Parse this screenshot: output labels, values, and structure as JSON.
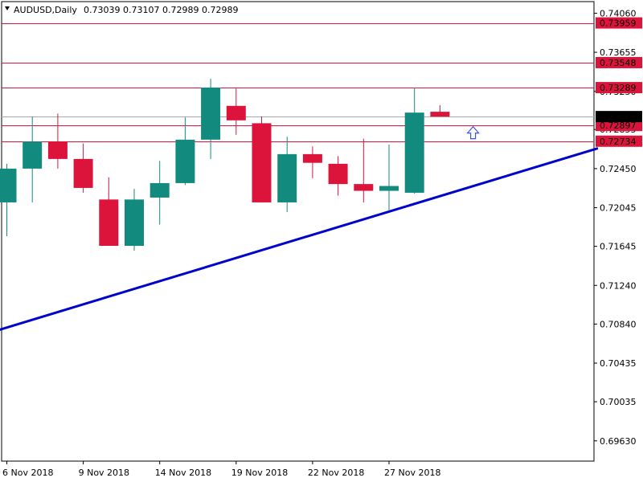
{
  "header": {
    "symbol_timeframe": "AUDUSD,Daily",
    "ohlc": "0.73039 0.73107 0.72989 0.72989"
  },
  "colors": {
    "bull": "#138a7e",
    "bear": "#dc143c",
    "level_line": "#dc143c",
    "current_price_line": "#a9a9a9",
    "trendline": "#0000cd",
    "arrow": "#3355ff"
  },
  "chart_data": {
    "type": "candlestick",
    "symbol": "AUDUSD",
    "timeframe": "Daily",
    "ylim": [
      0.6942,
      0.7418
    ],
    "y_ticks": [
      "0.74060",
      "0.73655",
      "0.73250",
      "0.72855",
      "0.72450",
      "0.72045",
      "0.71645",
      "0.71240",
      "0.70840",
      "0.70435",
      "0.70035",
      "0.69630"
    ],
    "x_tick_labels": [
      {
        "label": "6 Nov 2018",
        "index": 0
      },
      {
        "label": "9 Nov 2018",
        "index": 3
      },
      {
        "label": "14 Nov 2018",
        "index": 6
      },
      {
        "label": "19 Nov 2018",
        "index": 9
      },
      {
        "label": "22 Nov 2018",
        "index": 12
      },
      {
        "label": "27 Nov 2018",
        "index": 15
      }
    ],
    "candles": [
      {
        "o": 0.721,
        "h": 0.725,
        "l": 0.7175,
        "c": 0.7245
      },
      {
        "o": 0.7245,
        "h": 0.7299,
        "l": 0.721,
        "c": 0.7273
      },
      {
        "o": 0.7273,
        "h": 0.7302,
        "l": 0.7245,
        "c": 0.7255
      },
      {
        "o": 0.7255,
        "h": 0.7271,
        "l": 0.722,
        "c": 0.7225
      },
      {
        "o": 0.7213,
        "h": 0.7236,
        "l": 0.7165,
        "c": 0.7165
      },
      {
        "o": 0.7165,
        "h": 0.7224,
        "l": 0.716,
        "c": 0.7213
      },
      {
        "o": 0.7215,
        "h": 0.7253,
        "l": 0.7187,
        "c": 0.723
      },
      {
        "o": 0.723,
        "h": 0.7298,
        "l": 0.7228,
        "c": 0.7275
      },
      {
        "o": 0.7275,
        "h": 0.7338,
        "l": 0.7255,
        "c": 0.7329
      },
      {
        "o": 0.731,
        "h": 0.7328,
        "l": 0.728,
        "c": 0.7295
      },
      {
        "o": 0.7292,
        "h": 0.7299,
        "l": 0.721,
        "c": 0.721
      },
      {
        "o": 0.721,
        "h": 0.7278,
        "l": 0.72,
        "c": 0.726
      },
      {
        "o": 0.726,
        "h": 0.7268,
        "l": 0.7235,
        "c": 0.7251
      },
      {
        "o": 0.725,
        "h": 0.7258,
        "l": 0.7217,
        "c": 0.7229
      },
      {
        "o": 0.7229,
        "h": 0.7276,
        "l": 0.721,
        "c": 0.7222
      },
      {
        "o": 0.7222,
        "h": 0.727,
        "l": 0.7202,
        "c": 0.7227
      },
      {
        "o": 0.722,
        "h": 0.7329,
        "l": 0.7219,
        "c": 0.7303
      },
      {
        "o": 0.73039,
        "h": 0.73107,
        "l": 0.72989,
        "c": 0.72989
      }
    ],
    "levels": [
      {
        "price": 0.73959,
        "label": "0.73959"
      },
      {
        "price": 0.73548,
        "label": "0.73548"
      },
      {
        "price": 0.73289,
        "label": "0.73289"
      },
      {
        "price": 0.72897,
        "label": "0.72897"
      },
      {
        "price": 0.72734,
        "label": "0.72734"
      }
    ],
    "current_price": {
      "price": 0.72989,
      "label": "0.72989"
    },
    "trendline": {
      "x1_index": -0.5,
      "y1": 0.70764,
      "x2_index": 23.2,
      "y2": 0.72661
    },
    "arrow": {
      "index": 18.3,
      "price": 0.72885,
      "direction": "up"
    }
  }
}
